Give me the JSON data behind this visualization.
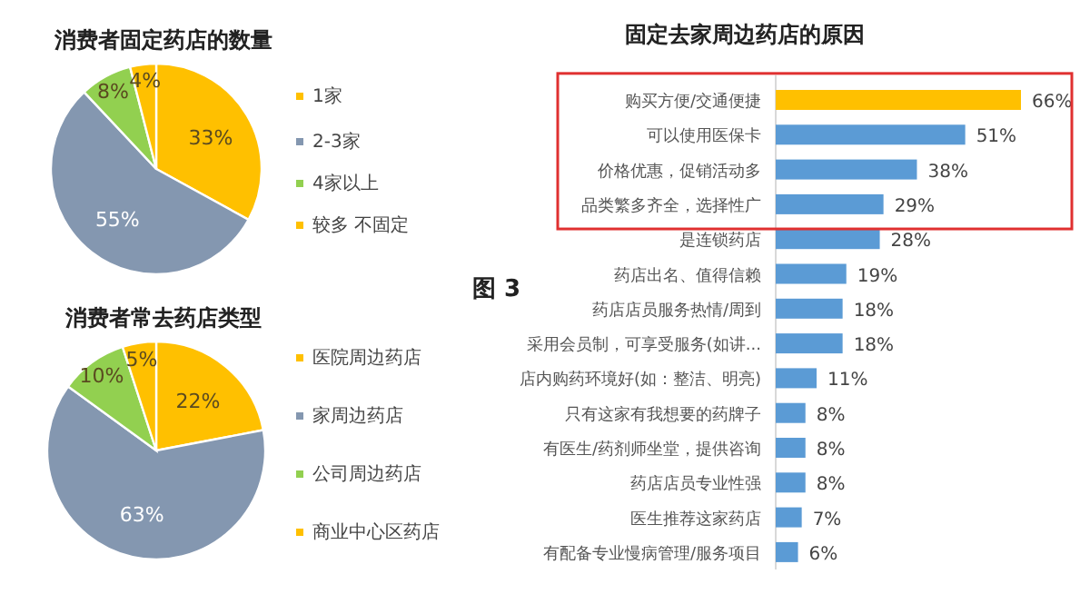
{
  "chart_data": [
    {
      "type": "pie",
      "title": "消费者固定药店的数量",
      "categories": [
        "1家",
        "2-3家",
        "4家以上",
        "较多 不固定"
      ],
      "values": [
        33,
        55,
        8,
        4
      ],
      "colors": [
        "#ffc000",
        "#8497b0",
        "#92d050",
        "#ffc000"
      ],
      "value_labels": [
        "33%",
        "55%",
        "8%",
        "4%"
      ],
      "legend": "right"
    },
    {
      "type": "pie",
      "title": "消费者常去药店类型",
      "categories": [
        "医院周边药店",
        "家周边药店",
        "公司周边药店",
        "商业中心区药店"
      ],
      "values": [
        22,
        63,
        10,
        5
      ],
      "colors": [
        "#ffc000",
        "#8497b0",
        "#92d050",
        "#ffc000"
      ],
      "value_labels": [
        "22%",
        "63%",
        "10%",
        "5%"
      ],
      "legend": "right",
      "annotations": [
        "图 3"
      ]
    },
    {
      "type": "bar",
      "orientation": "horizontal",
      "title": "固定去家周边药店的原因",
      "categories": [
        "购买方便/交通便捷",
        "可以使用医保卡",
        "价格优惠，促销活动多",
        "品类繁多齐全，选择性广",
        "是连锁药店",
        "药店出名、值得信赖",
        "药店店员服务热情/周到",
        "采用会员制，可享受服务(如讲...",
        "店内购药环境好(如：整洁、明亮)",
        "只有这家有我想要的药牌子",
        "有医生/药剂师坐堂，提供咨询",
        "药店店员专业性强",
        "医生推荐这家药店",
        "有配备专业慢病管理/服务项目"
      ],
      "values": [
        66,
        51,
        38,
        29,
        28,
        19,
        18,
        18,
        11,
        8,
        8,
        8,
        7,
        6
      ],
      "colors": [
        "#ffc000",
        "#5b9bd5",
        "#5b9bd5",
        "#5b9bd5",
        "#5b9bd5",
        "#5b9bd5",
        "#5b9bd5",
        "#5b9bd5",
        "#5b9bd5",
        "#5b9bd5",
        "#5b9bd5",
        "#5b9bd5",
        "#5b9bd5",
        "#5b9bd5"
      ],
      "value_labels": [
        "66%",
        "51%",
        "38%",
        "29%",
        "28%",
        "19%",
        "18%",
        "18%",
        "11%",
        "8%",
        "8%",
        "8%",
        "7%",
        "6%"
      ]
    }
  ]
}
